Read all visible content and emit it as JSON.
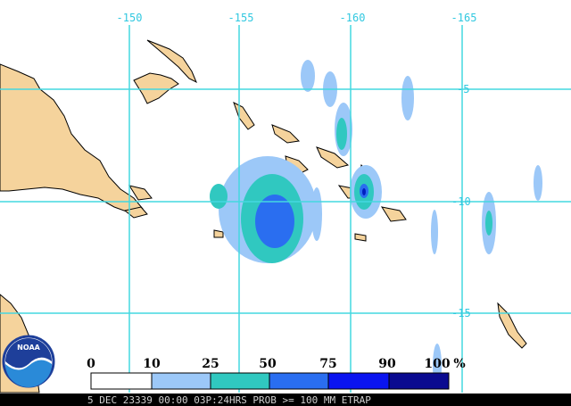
{
  "map": {
    "lon_labels": [
      "-150",
      "-155",
      "-160",
      "-165"
    ],
    "lat_labels": [
      "-5",
      "-10",
      "-15"
    ]
  },
  "legend": {
    "labels": [
      "0",
      "10",
      "25",
      "50",
      "75",
      "90",
      "100"
    ],
    "unit": "%"
  },
  "caption": "5 DEC 23339 00:00 03P:24HRS PROB >= 100 MM ETRAP",
  "logo": "NOAA"
}
